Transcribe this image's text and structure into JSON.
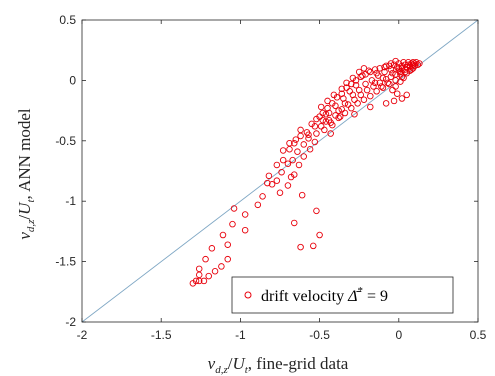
{
  "chart_data": {
    "type": "scatter",
    "xlabel": "v_{d,z}/U_t, fine-grid data",
    "ylabel": "v_{d,z}/U_t, ANN model",
    "xlabel_parts": {
      "v": "v",
      "sub": "d,z",
      "slash": "/",
      "u": "U",
      "usub": "t",
      "rest": ", fine-grid data"
    },
    "ylabel_parts": {
      "v": "v",
      "sub": "d,z",
      "slash": "/",
      "u": "U",
      "usub": "t",
      "rest": ", ANN model"
    },
    "xlim": [
      -2,
      0.5
    ],
    "ylim": [
      -2,
      0.5
    ],
    "xticks": [
      -2,
      -1.5,
      -1,
      -0.5,
      0,
      0.5
    ],
    "yticks": [
      -2,
      -1.5,
      -1,
      -0.5,
      0,
      0.5
    ],
    "xtick_labels": [
      "-2",
      "-1.5",
      "-1",
      "-0.5",
      "0",
      "0.5"
    ],
    "ytick_labels": [
      "-2",
      "-1.5",
      "-1",
      "-0.5",
      "0",
      "0.5"
    ],
    "grid": false,
    "legend_position": "bottom-right",
    "reference_line": {
      "x": [
        -2,
        0.5
      ],
      "y": [
        -2,
        0.5
      ],
      "color": "#7fa7c4"
    },
    "series": [
      {
        "name": "drift velocity Δ̄* = 9",
        "legend_parts": {
          "text": "drift velocity ",
          "sym": "Δ̄",
          "sup": "*",
          "eq": " = 9"
        },
        "marker": "open-circle",
        "color": "#e8000b",
        "points": [
          [
            -1.3,
            -1.68
          ],
          [
            -1.28,
            -1.66
          ],
          [
            -1.26,
            -1.66
          ],
          [
            -1.23,
            -1.66
          ],
          [
            -1.2,
            -1.62
          ],
          [
            -1.16,
            -1.58
          ],
          [
            -1.12,
            -1.54
          ],
          [
            -1.08,
            -1.48
          ],
          [
            -1.26,
            -1.61
          ],
          [
            -1.22,
            -1.48
          ],
          [
            -1.18,
            -1.39
          ],
          [
            -1.11,
            -1.28
          ],
          [
            -1.05,
            -1.19
          ],
          [
            -0.97,
            -1.11
          ],
          [
            -0.89,
            -1.03
          ],
          [
            -1.04,
            -1.06
          ],
          [
            -0.86,
            -0.96
          ],
          [
            -0.8,
            -0.86
          ],
          [
            -0.77,
            -0.83
          ],
          [
            -0.74,
            -0.76
          ],
          [
            -0.7,
            -0.69
          ],
          [
            -0.67,
            -0.66
          ],
          [
            -0.64,
            -0.59
          ],
          [
            -0.6,
            -0.53
          ],
          [
            -0.57,
            -0.48
          ],
          [
            -0.52,
            -0.44
          ],
          [
            -0.49,
            -0.38
          ],
          [
            -0.44,
            -0.33
          ],
          [
            -0.4,
            -0.29
          ],
          [
            -0.36,
            -0.24
          ],
          [
            -0.32,
            -0.2
          ],
          [
            -0.28,
            -0.16
          ],
          [
            -0.24,
            -0.12
          ],
          [
            -0.2,
            -0.08
          ],
          [
            -0.16,
            -0.05
          ],
          [
            -0.12,
            -0.02
          ],
          [
            -0.08,
            0.01
          ],
          [
            -0.05,
            0.03
          ],
          [
            -0.02,
            0.05
          ],
          [
            0.01,
            0.07
          ],
          [
            0.04,
            0.09
          ],
          [
            0.07,
            0.11
          ],
          [
            0.1,
            0.12
          ],
          [
            0.12,
            0.13
          ],
          [
            -0.82,
            -0.79
          ],
          [
            -0.77,
            -0.7
          ],
          [
            -0.73,
            -0.66
          ],
          [
            -0.69,
            -0.57
          ],
          [
            -0.66,
            -0.52
          ],
          [
            -0.62,
            -0.46
          ],
          [
            -0.58,
            -0.43
          ],
          [
            -0.55,
            -0.36
          ],
          [
            -0.52,
            -0.32
          ],
          [
            -0.48,
            -0.27
          ],
          [
            -0.45,
            -0.23
          ],
          [
            -0.42,
            -0.19
          ],
          [
            -0.39,
            -0.14
          ],
          [
            -0.36,
            -0.11
          ],
          [
            -0.33,
            -0.06
          ],
          [
            -0.3,
            -0.03
          ],
          [
            -0.27,
            0.0
          ],
          [
            -0.24,
            0.03
          ],
          [
            -0.21,
            0.05
          ],
          [
            -0.18,
            0.07
          ],
          [
            -0.15,
            0.09
          ],
          [
            -0.12,
            0.1
          ],
          [
            -0.09,
            0.11
          ],
          [
            -0.06,
            0.12
          ],
          [
            -0.03,
            0.13
          ],
          [
            0.0,
            0.14
          ],
          [
            0.03,
            0.15
          ],
          [
            0.06,
            0.15
          ],
          [
            0.09,
            0.15
          ],
          [
            -0.5,
            -0.3
          ],
          [
            -0.46,
            -0.34
          ],
          [
            -0.42,
            -0.37
          ],
          [
            -0.38,
            -0.31
          ],
          [
            -0.34,
            -0.27
          ],
          [
            -0.3,
            -0.23
          ],
          [
            -0.26,
            -0.19
          ],
          [
            -0.22,
            -0.16
          ],
          [
            -0.18,
            -0.13
          ],
          [
            -0.14,
            -0.09
          ],
          [
            -0.1,
            -0.06
          ],
          [
            -0.06,
            -0.03
          ],
          [
            -0.02,
            0.0
          ],
          [
            0.02,
            0.03
          ],
          [
            0.05,
            0.06
          ],
          [
            0.08,
            0.09
          ],
          [
            -0.02,
            -0.05
          ],
          [
            0.01,
            -0.01
          ],
          [
            0.03,
            0.02
          ],
          [
            -0.04,
            -0.08
          ],
          [
            -0.01,
            -0.11
          ],
          [
            0.02,
            -0.15
          ],
          [
            -0.03,
            -0.17
          ],
          [
            0.05,
            -0.12
          ],
          [
            -0.7,
            -0.87
          ],
          [
            -0.66,
            -0.78
          ],
          [
            -0.63,
            -0.7
          ],
          [
            -0.6,
            -0.63
          ],
          [
            -0.56,
            -0.57
          ],
          [
            -0.53,
            -0.51
          ],
          [
            -0.47,
            -0.41
          ],
          [
            -0.43,
            -0.35
          ],
          [
            -0.38,
            -0.25
          ],
          [
            -0.34,
            -0.19
          ],
          [
            -0.29,
            -0.12
          ],
          [
            -0.25,
            -0.08
          ],
          [
            -0.21,
            -0.03
          ],
          [
            -0.17,
            0.0
          ],
          [
            -0.13,
            0.04
          ],
          [
            -0.09,
            0.07
          ],
          [
            -0.05,
            0.09
          ],
          [
            -0.01,
            0.11
          ],
          [
            0.0,
            0.1
          ],
          [
            0.02,
            0.12
          ],
          [
            0.04,
            0.13
          ],
          [
            0.06,
            0.13
          ],
          [
            0.08,
            0.14
          ],
          [
            0.1,
            0.14
          ],
          [
            0.11,
            0.15
          ],
          [
            0.13,
            0.14
          ],
          [
            0.01,
            0.05
          ],
          [
            0.04,
            0.07
          ],
          [
            0.07,
            0.08
          ],
          [
            0.09,
            0.1
          ],
          [
            -0.07,
            -0.02
          ],
          [
            -0.1,
            0.02
          ],
          [
            -0.14,
            0.06
          ],
          [
            -0.19,
            0.08
          ],
          [
            -0.23,
            0.04
          ],
          [
            -0.27,
            -0.04
          ],
          [
            -0.31,
            -0.09
          ],
          [
            -0.35,
            -0.15
          ],
          [
            -0.4,
            -0.21
          ],
          [
            -0.44,
            -0.27
          ],
          [
            -0.48,
            -0.33
          ],
          [
            -0.53,
            -0.38
          ],
          [
            -0.57,
            -0.45
          ],
          [
            -0.62,
            -0.41
          ],
          [
            -0.65,
            -0.49
          ],
          [
            -0.69,
            -0.52
          ],
          [
            -0.73,
            -0.58
          ],
          [
            -0.68,
            -0.8
          ],
          [
            -0.83,
            -0.85
          ],
          [
            -0.75,
            -0.93
          ],
          [
            -0.97,
            -1.24
          ],
          [
            -1.08,
            -1.36
          ],
          [
            -1.26,
            -1.56
          ],
          [
            -0.61,
            -0.95
          ],
          [
            -0.66,
            -1.18
          ],
          [
            -0.52,
            -1.08
          ],
          [
            -0.62,
            -1.38
          ],
          [
            -0.54,
            -1.37
          ],
          [
            -0.5,
            -1.28
          ],
          [
            -0.43,
            -0.44
          ],
          [
            -0.28,
            -0.28
          ],
          [
            -0.18,
            -0.22
          ],
          [
            -0.08,
            -0.19
          ],
          [
            -0.37,
            -0.3
          ],
          [
            -0.46,
            -0.28
          ],
          [
            -0.15,
            -0.02
          ],
          [
            -0.11,
            -0.05
          ],
          [
            -0.04,
            0.06
          ],
          [
            0.0,
            0.08
          ],
          [
            0.02,
            0.1
          ],
          [
            0.05,
            0.11
          ],
          [
            0.07,
            0.12
          ],
          [
            0.09,
            0.13
          ],
          [
            -0.22,
            0.1
          ],
          [
            -0.25,
            0.07
          ],
          [
            -0.29,
            0.02
          ],
          [
            -0.33,
            -0.02
          ],
          [
            -0.36,
            -0.07
          ],
          [
            -0.41,
            -0.12
          ],
          [
            -0.45,
            -0.17
          ],
          [
            -0.49,
            -0.22
          ],
          [
            -0.08,
            0.12
          ],
          [
            -0.05,
            0.14
          ],
          [
            -0.02,
            0.16
          ]
        ]
      }
    ]
  }
}
